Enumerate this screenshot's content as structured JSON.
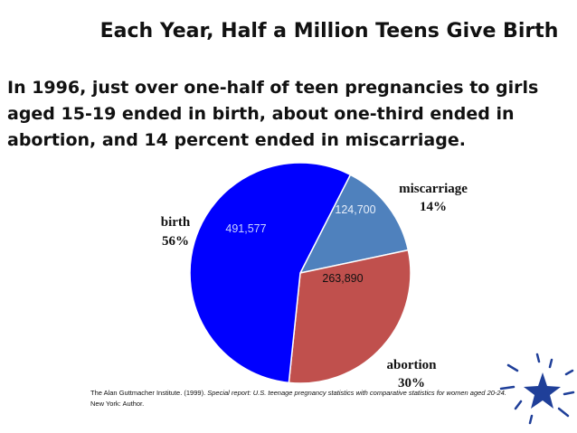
{
  "slide": {
    "title": "Each Year, Half a Million Teens Give Birth",
    "subtitle": "In 1996, just over one-half of teen pregnancies to girls aged 15-19 ended in birth, about one-third ended in abortion, and 14 percent ended in miscarriage."
  },
  "chart_data": {
    "type": "pie",
    "title": "",
    "slices": [
      {
        "name": "birth",
        "percent_label": "56%",
        "value": 491577,
        "value_label": "491,577",
        "color": "#0000ff",
        "value_text_color": "#c8d2ff"
      },
      {
        "name": "miscarriage",
        "percent_label": "14%",
        "value": 124700,
        "value_label": "124,700",
        "color": "#4f81bd",
        "value_text_color": "#e6eefa"
      },
      {
        "name": "abortion",
        "percent_label": "30%",
        "value": 263890,
        "value_label": "263,890",
        "color": "#c0504d",
        "value_text_color": "#111111"
      }
    ]
  },
  "citation": {
    "author": "The Alan Guttmacher Institute. (1999).",
    "title": "Special report: U.S. teenage pregnancy statistics with comparative statistics for women aged 20-24.",
    "publisher": "New York: Author."
  },
  "decoration": {
    "icon": "star-icon",
    "color": "#1f3f99"
  }
}
